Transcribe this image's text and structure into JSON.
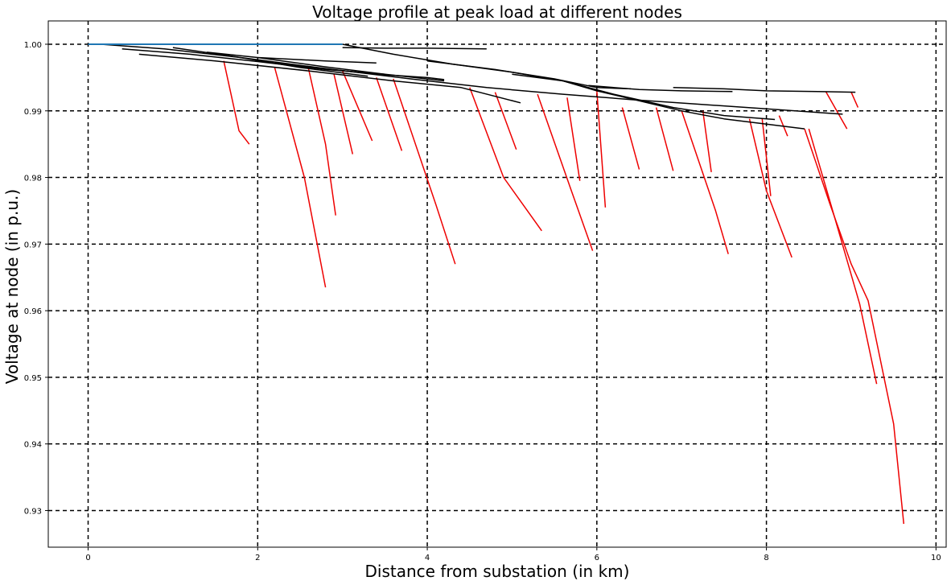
{
  "chart_data": {
    "type": "line",
    "title": "Voltage profile at peak load at different nodes",
    "xlabel": "Distance from substation (in km)",
    "ylabel": "Voltage at node (in p.u.)",
    "xlim": [
      -0.47,
      10.12
    ],
    "ylim": [
      0.9245,
      1.0035
    ],
    "xticks": [
      "0",
      "2",
      "4",
      "6",
      "8",
      "10"
    ],
    "xtick_values": [
      0,
      2,
      4,
      6,
      8,
      10
    ],
    "yticks": [
      "0.93",
      "0.94",
      "0.95",
      "0.96",
      "0.97",
      "0.98",
      "0.99",
      "1.00"
    ],
    "ytick_values": [
      0.93,
      0.94,
      0.95,
      0.96,
      0.97,
      0.98,
      0.99,
      1.0
    ],
    "grid": "dashed",
    "colors": {
      "feeder": "#000000",
      "lateral": "#ee0000",
      "source": "#1f77b4",
      "grid": "#000000"
    },
    "series": [
      {
        "kind": "source",
        "x": [
          0,
          0.3,
          1.0,
          2.0,
          3.0
        ],
        "y": [
          1.0,
          1.0,
          1.0,
          1.0,
          1.0
        ]
      },
      {
        "kind": "feeder",
        "x": [
          0.15,
          0.9,
          1.8,
          2.7,
          3.8,
          4.7,
          5.6,
          6.4,
          7.2,
          8.0,
          8.9
        ],
        "y": [
          1.0,
          0.9993,
          0.998,
          0.9965,
          0.9948,
          0.9935,
          0.9925,
          0.9917,
          0.991,
          0.9903,
          0.9895
        ]
      },
      {
        "kind": "feeder",
        "x": [
          0.4,
          1.2,
          2.0,
          2.8,
          3.5
        ],
        "y": [
          0.9993,
          0.9985,
          0.9974,
          0.9962,
          0.9955
        ]
      },
      {
        "kind": "feeder",
        "x": [
          0.6,
          1.5,
          2.6,
          3.6,
          4.4,
          5.1
        ],
        "y": [
          0.9985,
          0.9975,
          0.996,
          0.9945,
          0.9935,
          0.9912
        ]
      },
      {
        "kind": "feeder",
        "x": [
          1.0,
          1.7,
          2.5,
          3.3
        ],
        "y": [
          0.9995,
          0.9982,
          0.9965,
          0.9952
        ]
      },
      {
        "kind": "feeder",
        "x": [
          2.0,
          2.8,
          3.5,
          4.2
        ],
        "y": [
          0.998,
          0.9966,
          0.9955,
          0.9945
        ]
      },
      {
        "kind": "feeder",
        "x": [
          3.0,
          3.6,
          4.3,
          5.0,
          5.6,
          6.0,
          6.5,
          7.0,
          7.5,
          8.0,
          8.45
        ],
        "y": [
          1.0,
          0.9985,
          0.997,
          0.9958,
          0.9945,
          0.993,
          0.9915,
          0.99,
          0.9888,
          0.988,
          0.9873
        ]
      },
      {
        "kind": "feeder",
        "x": [
          4.0,
          4.8,
          5.5,
          6.0,
          6.4
        ],
        "y": [
          0.9975,
          0.9962,
          0.9948,
          0.9935,
          0.9933
        ]
      },
      {
        "kind": "feeder",
        "x": [
          5.0,
          5.6,
          6.2,
          6.9,
          7.5,
          8.1
        ],
        "y": [
          0.9955,
          0.9945,
          0.9925,
          0.9905,
          0.9893,
          0.9887
        ]
      },
      {
        "kind": "feeder",
        "x": [
          5.9,
          6.5,
          7.0,
          7.6
        ],
        "y": [
          0.9938,
          0.9932,
          0.993,
          0.9929
        ]
      },
      {
        "kind": "feeder",
        "x": [
          6.9,
          7.5,
          8.0,
          8.6,
          9.05
        ],
        "y": [
          0.9935,
          0.9933,
          0.993,
          0.9929,
          0.9928
        ]
      },
      {
        "kind": "feeder",
        "x": [
          3.0,
          3.5,
          4.0,
          4.7
        ],
        "y": [
          0.9995,
          0.9994,
          0.9994,
          0.9993
        ]
      },
      {
        "kind": "feeder",
        "x": [
          1.4,
          2.0,
          2.8,
          3.4
        ],
        "y": [
          0.9988,
          0.998,
          0.9975,
          0.9972
        ]
      },
      {
        "kind": "feeder",
        "x": [
          2.2,
          2.8,
          3.4,
          4.0,
          4.2
        ],
        "y": [
          0.9972,
          0.9963,
          0.9955,
          0.995,
          0.9947
        ]
      },
      {
        "kind": "lateral",
        "x": [
          2.2,
          2.55,
          2.8
        ],
        "y": [
          0.9965,
          0.98,
          0.9635
        ]
      },
      {
        "kind": "lateral",
        "x": [
          2.6,
          2.8,
          2.92
        ],
        "y": [
          0.9963,
          0.985,
          0.9743
        ]
      },
      {
        "kind": "lateral",
        "x": [
          3.6,
          4.1,
          4.33
        ],
        "y": [
          0.9948,
          0.976,
          0.967
        ]
      },
      {
        "kind": "lateral",
        "x": [
          4.5,
          4.9,
          5.35
        ],
        "y": [
          0.9935,
          0.98,
          0.972
        ]
      },
      {
        "kind": "lateral",
        "x": [
          5.3,
          5.7,
          5.95
        ],
        "y": [
          0.9925,
          0.978,
          0.969
        ]
      },
      {
        "kind": "lateral",
        "x": [
          6.0,
          6.1
        ],
        "y": [
          0.993,
          0.9755
        ]
      },
      {
        "kind": "lateral",
        "x": [
          7.0,
          7.4,
          7.55
        ],
        "y": [
          0.99,
          0.975,
          0.9685
        ]
      },
      {
        "kind": "lateral",
        "x": [
          7.8,
          8.0,
          8.3
        ],
        "y": [
          0.9888,
          0.978,
          0.968
        ]
      },
      {
        "kind": "lateral",
        "x": [
          8.45,
          8.75,
          9.0,
          9.2,
          9.5,
          9.62
        ],
        "y": [
          0.9873,
          0.976,
          0.967,
          0.9615,
          0.943,
          0.928
        ]
      },
      {
        "kind": "lateral",
        "x": [
          8.5,
          8.85,
          9.1,
          9.3
        ],
        "y": [
          0.9873,
          0.972,
          0.961,
          0.949
        ]
      },
      {
        "kind": "lateral",
        "x": [
          1.6,
          1.78,
          1.9
        ],
        "y": [
          0.9975,
          0.987,
          0.985
        ]
      },
      {
        "kind": "lateral",
        "x": [
          3.0,
          3.35
        ],
        "y": [
          0.996,
          0.9855
        ]
      },
      {
        "kind": "lateral",
        "x": [
          2.9,
          3.12
        ],
        "y": [
          0.9955,
          0.9835
        ]
      },
      {
        "kind": "lateral",
        "x": [
          3.4,
          3.7
        ],
        "y": [
          0.995,
          0.984
        ]
      },
      {
        "kind": "lateral",
        "x": [
          4.8,
          5.05
        ],
        "y": [
          0.9928,
          0.9842
        ]
      },
      {
        "kind": "lateral",
        "x": [
          5.65,
          5.8
        ],
        "y": [
          0.992,
          0.9795
        ]
      },
      {
        "kind": "lateral",
        "x": [
          6.3,
          6.5
        ],
        "y": [
          0.9905,
          0.9812
        ]
      },
      {
        "kind": "lateral",
        "x": [
          6.7,
          6.9
        ],
        "y": [
          0.9905,
          0.981
        ]
      },
      {
        "kind": "lateral",
        "x": [
          7.25,
          7.35
        ],
        "y": [
          0.99,
          0.9808
        ]
      },
      {
        "kind": "lateral",
        "x": [
          7.95,
          8.05
        ],
        "y": [
          0.9888,
          0.9772
        ]
      },
      {
        "kind": "lateral",
        "x": [
          8.15,
          8.25
        ],
        "y": [
          0.9893,
          0.9862
        ]
      },
      {
        "kind": "lateral",
        "x": [
          8.7,
          8.95
        ],
        "y": [
          0.9929,
          0.9873
        ]
      },
      {
        "kind": "lateral",
        "x": [
          9.0,
          9.08
        ],
        "y": [
          0.9928,
          0.9905
        ]
      }
    ]
  }
}
